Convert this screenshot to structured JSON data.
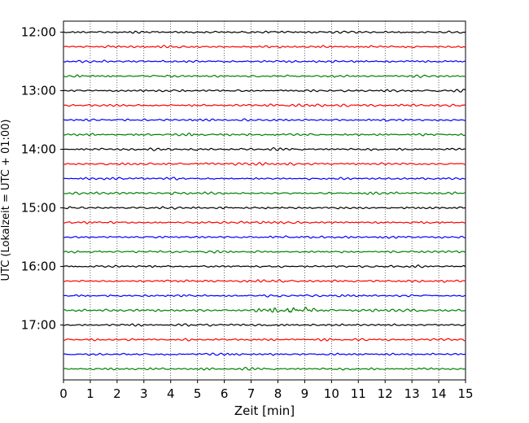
{
  "chart_data": {
    "type": "line",
    "title": "",
    "xlabel": "Zeit  [min]",
    "ylabel": "UTC (Lokalzeit = UTC + 01:00)",
    "xlim": [
      0,
      15
    ],
    "x_ticks": [
      0,
      1,
      2,
      3,
      4,
      5,
      6,
      7,
      8,
      9,
      10,
      11,
      12,
      13,
      14,
      15
    ],
    "y_ticks": [
      "12:00",
      "13:00",
      "14:00",
      "15:00",
      "16:00",
      "17:00"
    ],
    "grid": "vertical dotted lines at each minute",
    "legend": "none",
    "trace_interval_minutes": 15,
    "trace_colors_cycle": [
      "#000000",
      "#ff0000",
      "#0000ff",
      "#008000"
    ],
    "traces": [
      {
        "start": "12:00",
        "color": "#000000"
      },
      {
        "start": "12:15",
        "color": "#ff0000"
      },
      {
        "start": "12:30",
        "color": "#0000ff"
      },
      {
        "start": "12:45",
        "color": "#008000"
      },
      {
        "start": "13:00",
        "color": "#000000"
      },
      {
        "start": "13:15",
        "color": "#ff0000"
      },
      {
        "start": "13:30",
        "color": "#0000ff"
      },
      {
        "start": "13:45",
        "color": "#008000"
      },
      {
        "start": "14:00",
        "color": "#000000"
      },
      {
        "start": "14:15",
        "color": "#ff0000"
      },
      {
        "start": "14:30",
        "color": "#0000ff"
      },
      {
        "start": "14:45",
        "color": "#008000"
      },
      {
        "start": "15:00",
        "color": "#000000"
      },
      {
        "start": "15:15",
        "color": "#ff0000"
      },
      {
        "start": "15:30",
        "color": "#0000ff"
      },
      {
        "start": "15:45",
        "color": "#008000"
      },
      {
        "start": "16:00",
        "color": "#000000"
      },
      {
        "start": "16:15",
        "color": "#ff0000"
      },
      {
        "start": "16:30",
        "color": "#0000ff"
      },
      {
        "start": "16:45",
        "color": "#008000",
        "event_minutes": [
          7,
          10
        ]
      },
      {
        "start": "17:00",
        "color": "#000000"
      },
      {
        "start": "17:15",
        "color": "#ff0000"
      },
      {
        "start": "17:30",
        "color": "#0000ff"
      },
      {
        "start": "17:45",
        "color": "#008000"
      }
    ]
  }
}
